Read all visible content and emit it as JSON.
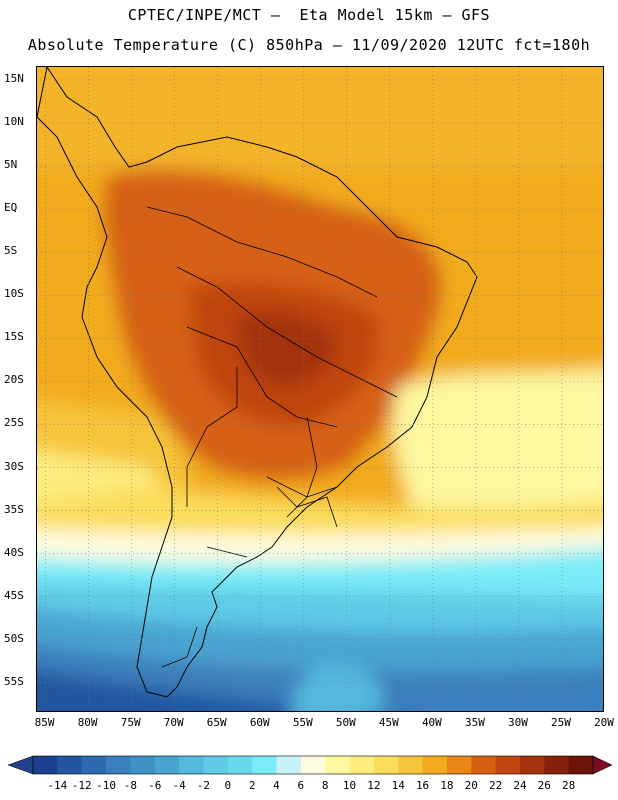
{
  "header": {
    "line1": "CPTEC/INPE/MCT –  Eta Model 15km – GFS",
    "line2": "Absolute Temperature (C) 850hPa – 11/09/2020 12UTC fct=180h"
  },
  "map": {
    "lat_ticks": [
      "15N",
      "10N",
      "5N",
      "EQ",
      "5S",
      "10S",
      "15S",
      "20S",
      "25S",
      "30S",
      "35S",
      "40S",
      "45S",
      "50S",
      "55S"
    ],
    "lon_ticks": [
      "85W",
      "80W",
      "75W",
      "70W",
      "65W",
      "60W",
      "55W",
      "50W",
      "45W",
      "40W",
      "35W",
      "30W",
      "25W",
      "20W"
    ],
    "extent": {
      "lon_min": -86,
      "lon_max": -20,
      "lat_min": -58.5,
      "lat_max": 16.5
    },
    "grid": "dotted"
  },
  "legend": {
    "labels": [
      "-14",
      "-12",
      "-10",
      "-8",
      "-6",
      "-4",
      "-2",
      "0",
      "2",
      "4",
      "6",
      "8",
      "10",
      "12",
      "14",
      "16",
      "18",
      "20",
      "22",
      "24",
      "26",
      "28"
    ],
    "colors": [
      "#1c3f8f",
      "#2356a0",
      "#2e6aae",
      "#3a7fbc",
      "#3f90c6",
      "#4aa4d2",
      "#55b8dd",
      "#5fcbe6",
      "#6ad9ee",
      "#79ecf8",
      "#c9f2fb",
      "#fefce0",
      "#fdf7a0",
      "#fdec7e",
      "#fbdd5c",
      "#f6c53a",
      "#f2ab1f",
      "#e88716",
      "#d66012",
      "#c04510",
      "#a3330c",
      "#85200a",
      "#6a1306"
    ],
    "low_arrow_color": "#24408d",
    "high_arrow_color": "#7c0b24"
  }
}
